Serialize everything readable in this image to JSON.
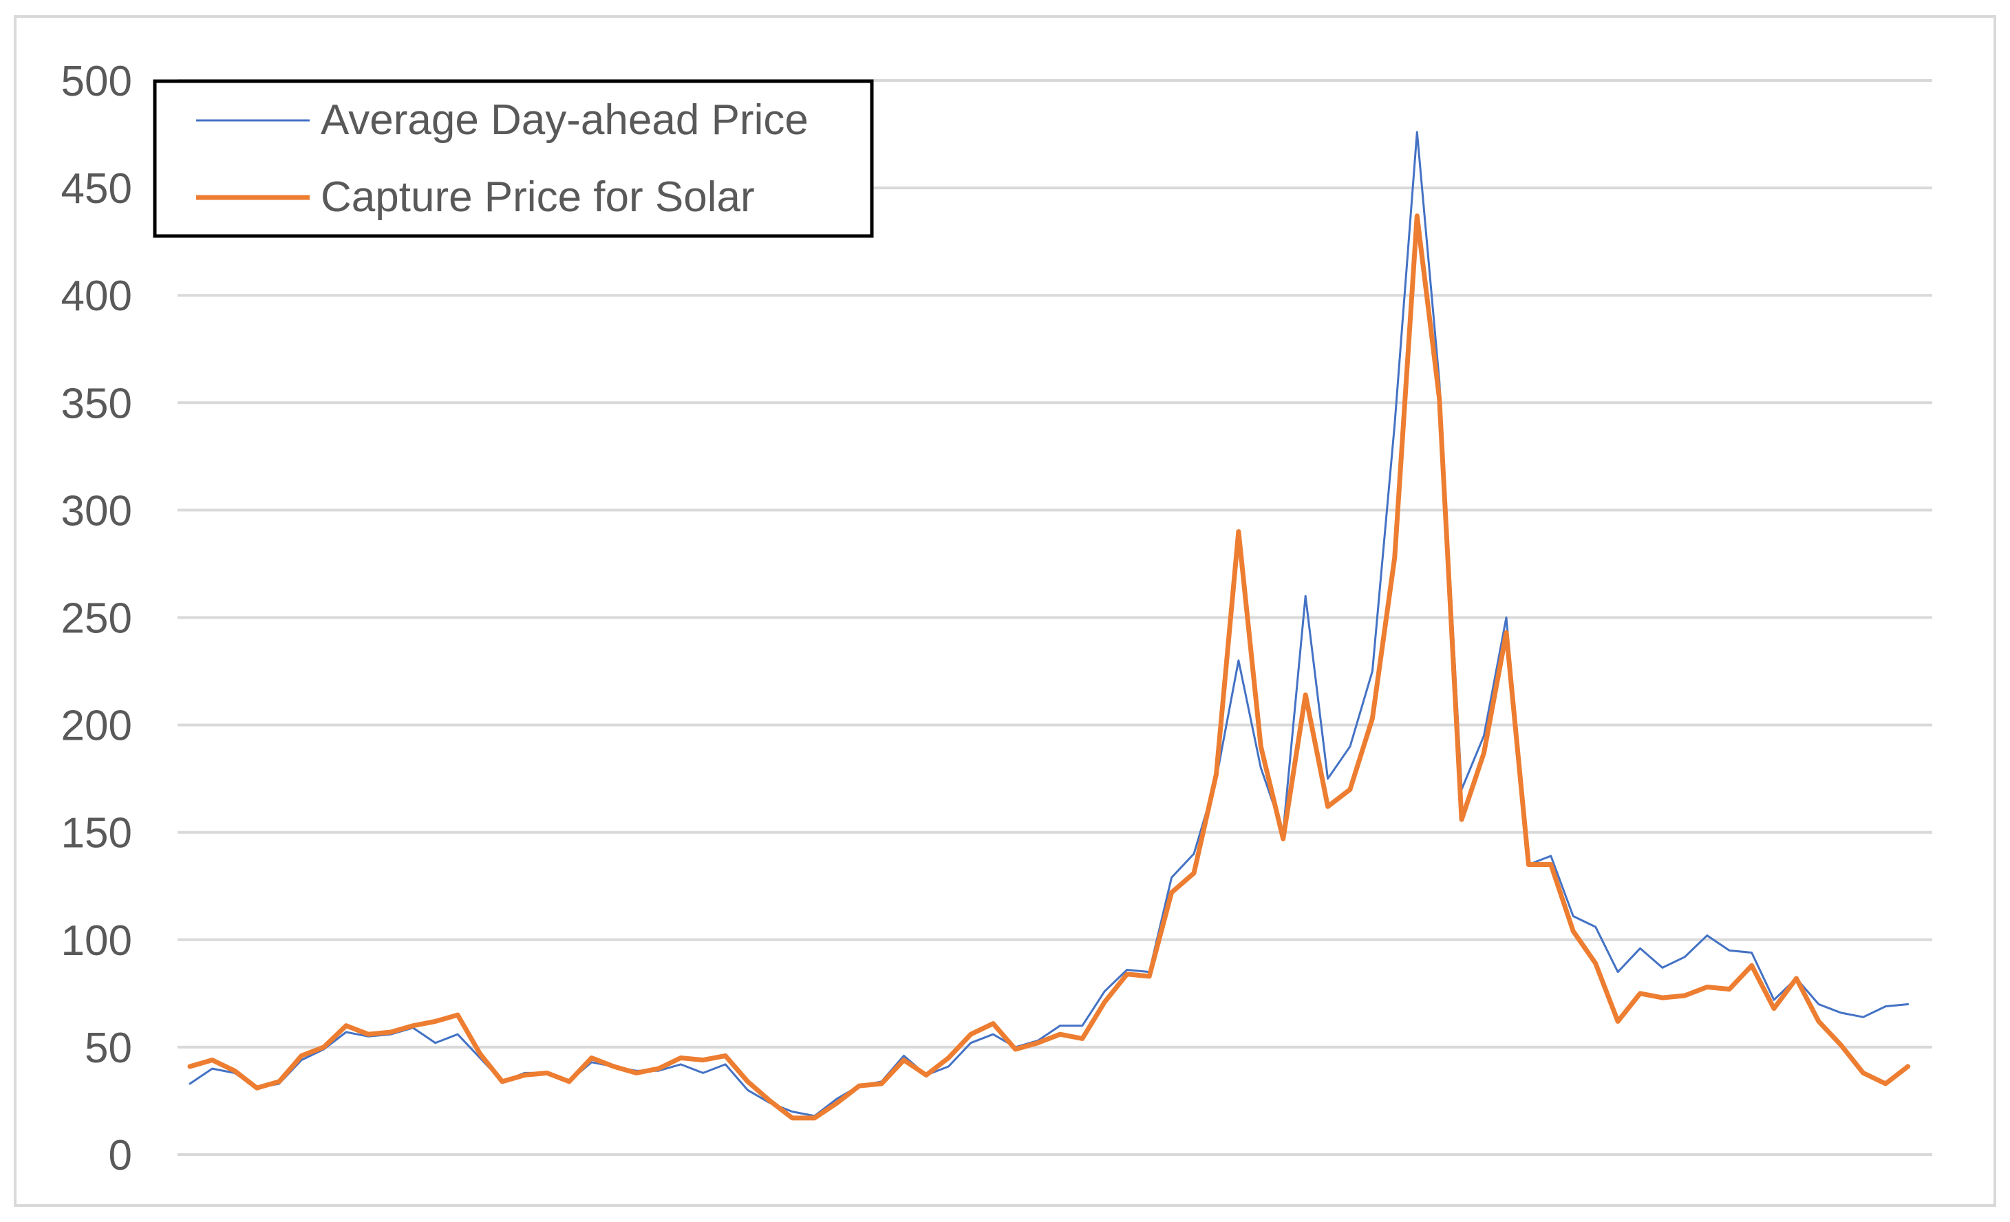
{
  "chart_data": {
    "type": "line",
    "title": "",
    "xlabel": "",
    "ylabel": "",
    "ylim": [
      0,
      500
    ],
    "yticks": [
      "0",
      "50",
      "100",
      "150",
      "200",
      "250",
      "300",
      "350",
      "400",
      "450",
      "500"
    ],
    "grid": true,
    "legend_position": "top-left",
    "x": [
      1,
      2,
      3,
      4,
      5,
      6,
      7,
      8,
      9,
      10,
      11,
      12,
      13,
      14,
      15,
      16,
      17,
      18,
      19,
      20,
      21,
      22,
      23,
      24,
      25,
      26,
      27,
      28,
      29,
      30,
      31,
      32,
      33,
      34,
      35,
      36,
      37,
      38,
      39,
      40,
      41,
      42,
      43,
      44,
      45,
      46,
      47,
      48,
      49,
      50,
      51,
      52,
      53,
      54,
      55,
      56,
      57,
      58,
      59,
      60,
      61,
      62,
      63,
      64,
      65,
      66,
      67,
      68,
      69,
      70,
      71,
      72,
      73,
      74,
      75,
      76,
      77,
      78,
      79
    ],
    "series": [
      {
        "name": "Average Day-ahead Price",
        "color": "#4472C4",
        "values": [
          33,
          40,
          38,
          31,
          33,
          44,
          49,
          57,
          55,
          56,
          59,
          52,
          56,
          45,
          34,
          38,
          38,
          34,
          43,
          41,
          39,
          39,
          42,
          38,
          42,
          30,
          24,
          20,
          18,
          26,
          32,
          34,
          46,
          37,
          41,
          52,
          56,
          50,
          53,
          60,
          60,
          76,
          86,
          85,
          129,
          140,
          175,
          230,
          180,
          150,
          260,
          175,
          190,
          225,
          340,
          476,
          360,
          170,
          195,
          250,
          135,
          139,
          111,
          106,
          85,
          96,
          87,
          92,
          102,
          95,
          94,
          72,
          82,
          70,
          66,
          64,
          69,
          70,
          null
        ],
        "values_note_excluded": false
      },
      {
        "name": "Capture Price for Solar",
        "color": "#ED7D31",
        "values": [
          41,
          44,
          39,
          31,
          34,
          46,
          50,
          60,
          56,
          57,
          60,
          62,
          65,
          47,
          34,
          37,
          38,
          34,
          45,
          41,
          38,
          40,
          45,
          44,
          46,
          34,
          25,
          17,
          17,
          24,
          32,
          33,
          44,
          37,
          45,
          56,
          61,
          49,
          52,
          56,
          54,
          71,
          84,
          83,
          122,
          131,
          177,
          290,
          190,
          147,
          214,
          162,
          170,
          203,
          278,
          437,
          352,
          156,
          187,
          243,
          135,
          135,
          104,
          89,
          62,
          75,
          73,
          74,
          78,
          77,
          88,
          68,
          82,
          62,
          51,
          38,
          33,
          41,
          null
        ]
      }
    ]
  }
}
